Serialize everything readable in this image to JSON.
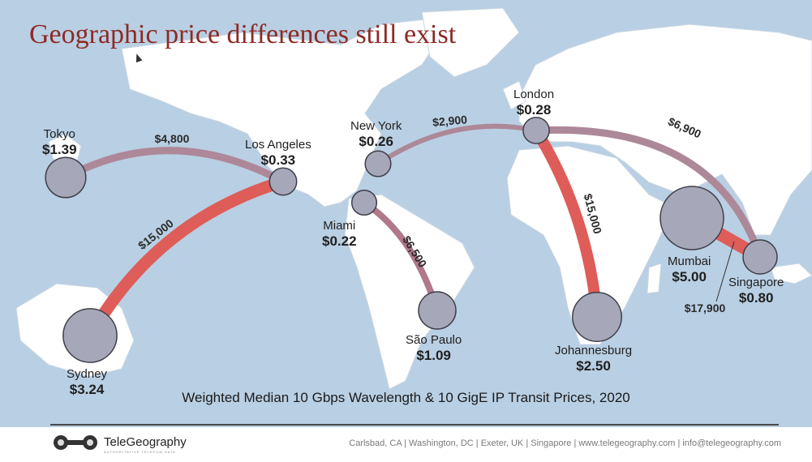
{
  "title": "Geographic price differences still exist",
  "caption": "Weighted Median 10 Gbps Wavelength & 10 GigE IP Transit Prices, 2020",
  "colors": {
    "ocean": "#b9cfe3",
    "land": "#ffffff",
    "node_fill": "#a6a8ba",
    "node_stroke": "#3e3e48",
    "route_wave": "#de5d58",
    "route_ip": "#ad8898",
    "title": "#8e2a25"
  },
  "cities": [
    {
      "id": "tokyo",
      "name": "Tokyo",
      "price": "$1.39",
      "price_value": 1.39
    },
    {
      "id": "los-angeles",
      "name": "Los Angeles",
      "price": "$0.33",
      "price_value": 0.33
    },
    {
      "id": "sydney",
      "name": "Sydney",
      "price": "$3.24",
      "price_value": 3.24
    },
    {
      "id": "new-york",
      "name": "New York",
      "price": "$0.26",
      "price_value": 0.26
    },
    {
      "id": "miami",
      "name": "Miami",
      "price": "$0.22",
      "price_value": 0.22
    },
    {
      "id": "sao-paulo",
      "name": "São Paulo",
      "price": "$1.09",
      "price_value": 1.09
    },
    {
      "id": "london",
      "name": "London",
      "price": "$0.28",
      "price_value": 0.28
    },
    {
      "id": "johannesburg",
      "name": "Johannesburg",
      "price": "$2.50",
      "price_value": 2.5
    },
    {
      "id": "mumbai",
      "name": "Mumbai",
      "price": "$5.00",
      "price_value": 5.0
    },
    {
      "id": "singapore",
      "name": "Singapore",
      "price": "$0.80",
      "price_value": 0.8
    }
  ],
  "routes": [
    {
      "id": "tokyo-la",
      "from": "tokyo",
      "to": "los-angeles",
      "label": "$4,800",
      "value": 4800
    },
    {
      "id": "la-sydney",
      "from": "los-angeles",
      "to": "sydney",
      "label": "$15,000",
      "value": 15000
    },
    {
      "id": "ny-london",
      "from": "new-york",
      "to": "london",
      "label": "$2,900",
      "value": 2900
    },
    {
      "id": "miami-saopaulo",
      "from": "miami",
      "to": "sao-paulo",
      "label": "$6,500",
      "value": 6500
    },
    {
      "id": "london-johannesburg",
      "from": "london",
      "to": "johannesburg",
      "label": "$15,000",
      "value": 15000
    },
    {
      "id": "london-singapore",
      "from": "london",
      "to": "singapore",
      "label": "$6,900",
      "value": 6900
    },
    {
      "id": "mumbai-singapore",
      "from": "mumbai",
      "to": "singapore",
      "label": "$17,900",
      "value": 17900
    }
  ],
  "footer": {
    "logo": "TeleGeography",
    "tagline": "AUTHORITATIVE TELECOM DATA",
    "contact": "Carlsbad, CA | Washington, DC | Exeter, UK | Singapore | www.telegeography.com | info@telegeography.com"
  }
}
